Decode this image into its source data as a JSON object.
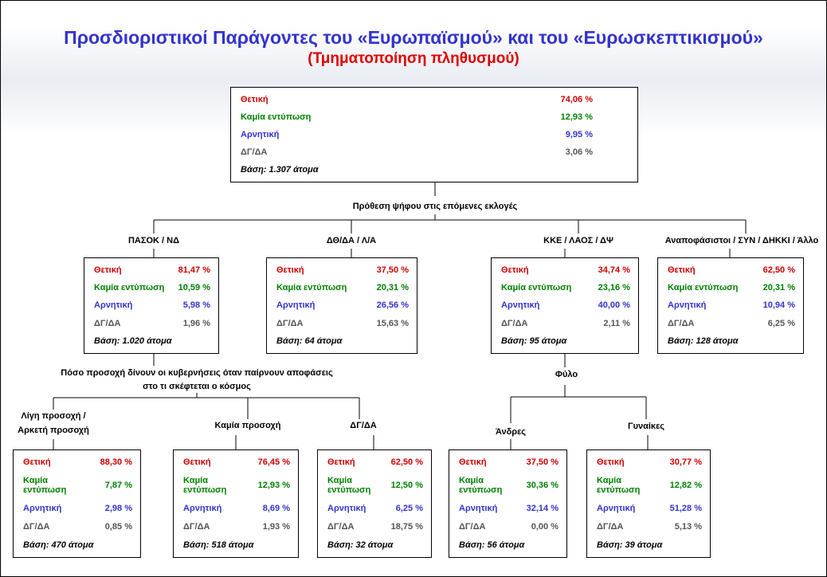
{
  "title": "Προσδιοριστικοί Παράγοντες του «Ευρωπαϊσμού» και του «Ευρωσκεπτικισμού»",
  "subtitle": "(Τμηματοποίηση πληθυσμού)",
  "root": {
    "rows": [
      {
        "label": "Θετική",
        "value": "74,06 %"
      },
      {
        "label": "Καμία εντύπωση",
        "value": "12,93 %"
      },
      {
        "label": "Αρνητική",
        "value": "9,95 %"
      },
      {
        "label": "ΔΓ/ΔΑ",
        "value": "3,06 %"
      }
    ],
    "base": "Βάση: 1.307 άτομα"
  },
  "level1": {
    "question": "Πρόθεση ψήφου στις επόμενες εκλογές",
    "groups": [
      {
        "label": "ΠΑΣΟΚ / ΝΔ",
        "rows": [
          {
            "label": "Θετική",
            "value": "81,47 %"
          },
          {
            "label": "Καμία εντύπωση",
            "value": "10,59 %"
          },
          {
            "label": "Αρνητική",
            "value": "5,98 %"
          },
          {
            "label": "ΔΓ/ΔΑ",
            "value": "1,96 %"
          }
        ],
        "base": "Βάση: 1.020 άτομα"
      },
      {
        "label": "ΔΘ/ΔΑ / Λ/Α",
        "rows": [
          {
            "label": "Θετική",
            "value": "37,50 %"
          },
          {
            "label": "Καμία εντύπωση",
            "value": "20,31 %"
          },
          {
            "label": "Αρνητική",
            "value": "26,56 %"
          },
          {
            "label": "ΔΓ/ΔΑ",
            "value": "15,63 %"
          }
        ],
        "base": "Βάση: 64 άτομα"
      },
      {
        "label": "ΚΚΕ / ΛΑΟΣ / ΔΨ",
        "rows": [
          {
            "label": "Θετική",
            "value": "34,74 %"
          },
          {
            "label": "Καμία εντύπωση",
            "value": "23,16 %"
          },
          {
            "label": "Αρνητική",
            "value": "40,00 %"
          },
          {
            "label": "ΔΓ/ΔΑ",
            "value": "2,11 %"
          }
        ],
        "base": "Βάση: 95 άτομα"
      },
      {
        "label": "Αναποφάσιστοι / ΣΥΝ / ΔΗΚΚΙ / Άλλο",
        "rows": [
          {
            "label": "Θετική",
            "value": "62,50 %"
          },
          {
            "label": "Καμία εντύπωση",
            "value": "20,31 %"
          },
          {
            "label": "Αρνητική",
            "value": "10,94 %"
          },
          {
            "label": "ΔΓ/ΔΑ",
            "value": "6,25 %"
          }
        ],
        "base": "Βάση: 128 άτομα"
      }
    ]
  },
  "level2a": {
    "question": [
      "Πόσο προσοχή δίνουν οι κυβερνήσεις όταν παίρνουν αποφάσεις",
      "στο τι σκέφτεται ο κόσμος"
    ],
    "groups": [
      {
        "label": [
          "Λίγη προσοχή /",
          "Αρκετή προσοχή"
        ],
        "rows": [
          {
            "label": "Θετική",
            "value": "88,30 %"
          },
          {
            "label": "Καμία εντύπωση",
            "value": "7,87 %"
          },
          {
            "label": "Αρνητική",
            "value": "2,98 %"
          },
          {
            "label": "ΔΓ/ΔΑ",
            "value": "0,85 %"
          }
        ],
        "base": "Βάση: 470 άτομα"
      },
      {
        "label": [
          "Καμία προσοχή"
        ],
        "rows": [
          {
            "label": "Θετική",
            "value": "76,45 %"
          },
          {
            "label": "Καμία εντύπωση",
            "value": "12,93 %"
          },
          {
            "label": "Αρνητική",
            "value": "8,69 %"
          },
          {
            "label": "ΔΓ/ΔΑ",
            "value": "1,93 %"
          }
        ],
        "base": "Βάση: 518 άτομα"
      },
      {
        "label": [
          "ΔΓ/ΔΑ"
        ],
        "rows": [
          {
            "label": "Θετική",
            "value": "62,50 %"
          },
          {
            "label": "Καμία εντύπωση",
            "value": "12,50 %"
          },
          {
            "label": "Αρνητική",
            "value": "6,25 %"
          },
          {
            "label": "ΔΓ/ΔΑ",
            "value": "18,75 %"
          }
        ],
        "base": "Βάση: 32 άτομα"
      }
    ]
  },
  "level2b": {
    "question": "Φύλο",
    "groups": [
      {
        "label": [
          "Άνδρες"
        ],
        "rows": [
          {
            "label": "Θετική",
            "value": "37,50 %"
          },
          {
            "label": "Καμία εντύπωση",
            "value": "30,36 %"
          },
          {
            "label": "Αρνητική",
            "value": "32,14 %"
          },
          {
            "label": "ΔΓ/ΔΑ",
            "value": "0,00 %"
          }
        ],
        "base": "Βάση: 56 άτομα"
      },
      {
        "label": [
          "Γυναίκες"
        ],
        "rows": [
          {
            "label": "Θετική",
            "value": "30,77 %"
          },
          {
            "label": "Καμία εντύπωση",
            "value": "12,82 %"
          },
          {
            "label": "Αρνητική",
            "value": "51,28 %"
          },
          {
            "label": "ΔΓ/ΔΑ",
            "value": "5,13 %"
          }
        ],
        "base": "Βάση: 39 άτομα"
      }
    ]
  }
}
